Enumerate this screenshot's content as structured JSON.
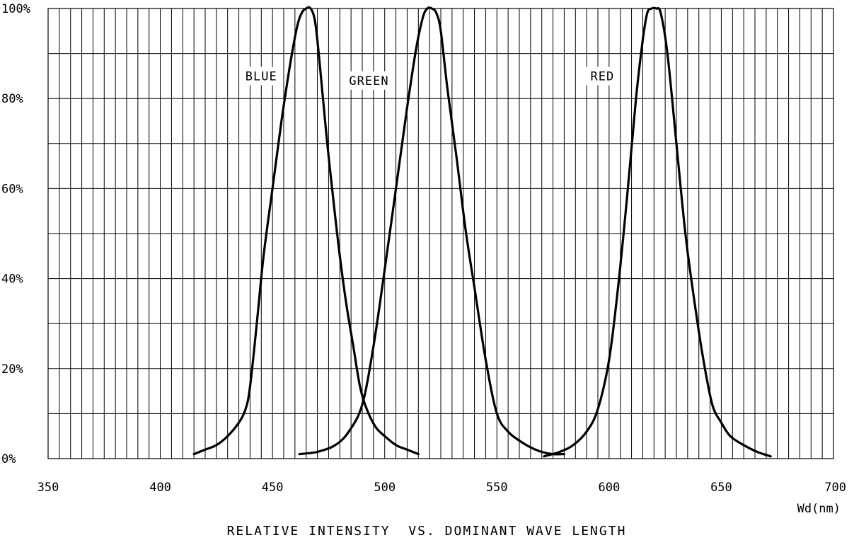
{
  "chart_data": {
    "type": "line",
    "title": "RELATIVE INTENSITY  VS. DOMINANT WAVE LENGTH",
    "xlabel": "Wd(nm)",
    "ylabel": "",
    "xlim": [
      350,
      700
    ],
    "ylim": [
      0,
      100
    ],
    "x_ticks": [
      350,
      400,
      450,
      500,
      550,
      600,
      650,
      700
    ],
    "x_tick_labels": [
      "350",
      "400",
      "450",
      "500",
      "550",
      "600",
      "650",
      "700"
    ],
    "y_ticks": [
      0,
      20,
      40,
      60,
      80,
      100
    ],
    "y_tick_labels": [
      "0%",
      "20%",
      "40%",
      "60%",
      "80%",
      "100%"
    ],
    "x_grid_step": 5,
    "y_grid_step": 10,
    "grid": true,
    "series": [
      {
        "name": "BLUE",
        "x": [
          415,
          420,
          425,
          430,
          435,
          438,
          440,
          443,
          446,
          450,
          454,
          458,
          461,
          463,
          465,
          467,
          469,
          471,
          474,
          477,
          480,
          483,
          486,
          489,
          492,
          496,
          500,
          505,
          510,
          515
        ],
        "y": [
          1,
          2,
          3,
          5,
          8,
          11,
          16,
          30,
          45,
          60,
          75,
          88,
          96,
          99,
          100,
          100,
          97,
          88,
          72,
          58,
          45,
          34,
          25,
          16,
          11,
          7,
          5,
          3,
          2,
          1
        ]
      },
      {
        "name": "GREEN",
        "x": [
          462,
          470,
          478,
          484,
          490,
          495,
          500,
          505,
          510,
          514,
          517,
          519,
          521,
          523,
          525,
          528,
          532,
          536,
          540,
          545,
          550,
          555,
          560,
          565,
          570,
          575,
          580
        ],
        "y": [
          1,
          1.5,
          3,
          6,
          12,
          25,
          42,
          60,
          78,
          91,
          98,
          100,
          100,
          99,
          95,
          82,
          67,
          51,
          38,
          22,
          10,
          6,
          4,
          2.5,
          1.5,
          1,
          1
        ]
      },
      {
        "name": "RED",
        "x": [
          571,
          578,
          584,
          590,
          595,
          600,
          604,
          608,
          612,
          615,
          617,
          619,
          621,
          623,
          626,
          630,
          634,
          638,
          642,
          646,
          650,
          654,
          660,
          666,
          672
        ],
        "y": [
          0.5,
          1.5,
          3,
          6,
          11,
          22,
          38,
          58,
          80,
          93,
          99,
          100,
          100,
          99,
          90,
          70,
          50,
          35,
          22,
          12,
          8,
          5,
          3,
          1.5,
          0.5
        ]
      }
    ],
    "annotations": [
      {
        "text": "BLUE",
        "x": 445,
        "y": 85
      },
      {
        "text": "GREEN",
        "x": 493,
        "y": 84
      },
      {
        "text": "RED",
        "x": 597,
        "y": 85
      }
    ],
    "colors": {
      "line": "#000000",
      "grid": "#000000",
      "background": "#ffffff"
    }
  }
}
